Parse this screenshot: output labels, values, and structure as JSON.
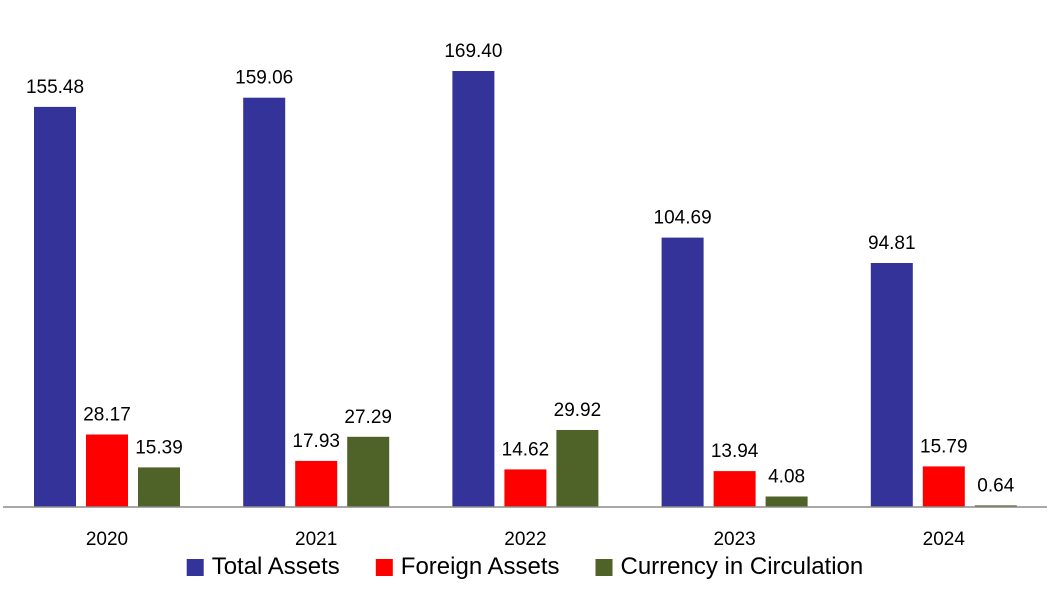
{
  "chart_data": {
    "type": "bar",
    "categories": [
      "2020",
      "2021",
      "2022",
      "2023",
      "2024"
    ],
    "series": [
      {
        "name": "Total Assets",
        "color": "#333399",
        "values": [
          155.48,
          159.06,
          169.4,
          104.69,
          94.81
        ]
      },
      {
        "name": "Foreign Assets",
        "color": "#ff0000",
        "values": [
          28.17,
          17.93,
          14.62,
          13.94,
          15.79
        ]
      },
      {
        "name": "Currency in Circulation",
        "color": "#4f6228",
        "values": [
          15.39,
          27.29,
          29.92,
          4.08,
          0.64
        ]
      }
    ],
    "data_labels": {
      "Total Assets": [
        "155.48",
        "159.06",
        "169.40",
        "104.69",
        "94.81"
      ],
      "Foreign Assets": [
        "28.17",
        "17.93",
        "14.62",
        "13.94",
        "15.79"
      ],
      "Currency in Circulation": [
        "15.39",
        "27.29",
        "29.92",
        "4.08",
        "0.64"
      ]
    },
    "ylim": [
      0,
      180
    ],
    "grid": false,
    "legend": "bottom",
    "title": "",
    "xlabel": "",
    "ylabel": ""
  }
}
